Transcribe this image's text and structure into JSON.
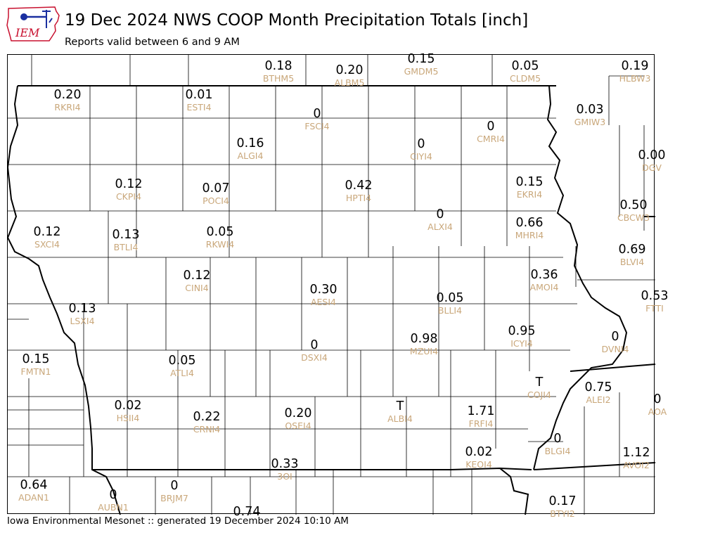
{
  "header": {
    "logo_text": "IEM",
    "title": "19 Dec 2024 NWS COOP Month Precipitation Totals [inch]",
    "subtitle": "Reports valid between 6 and 9 AM"
  },
  "footer": {
    "text": "Iowa Environmental Mesonet :: generated 19 December 2024 10:10 AM"
  },
  "colors": {
    "value_text": "#000000",
    "station_id_text": "#c9a77a",
    "logo_red": "#c8102e",
    "logo_blue": "#1a2fa0"
  },
  "stations": [
    {
      "id": "BTHM5",
      "value": "0.18"
    },
    {
      "id": "ALBM5",
      "value": "0.20"
    },
    {
      "id": "GMDM5",
      "value": "0.15"
    },
    {
      "id": "CLDM5",
      "value": "0.05"
    },
    {
      "id": "HLBW3",
      "value": "0.19"
    },
    {
      "id": "RKRI4",
      "value": "0.20"
    },
    {
      "id": "ESTI4",
      "value": "0.01"
    },
    {
      "id": "FSCI4",
      "value": "0"
    },
    {
      "id": "CMRI4",
      "value": "0"
    },
    {
      "id": "GMIW3",
      "value": "0.03"
    },
    {
      "id": "ALGI4",
      "value": "0.16"
    },
    {
      "id": "CIYI4",
      "value": "0"
    },
    {
      "id": "DGV",
      "value": "0.00"
    },
    {
      "id": "CKPI4",
      "value": "0.12"
    },
    {
      "id": "POCI4",
      "value": "0.07"
    },
    {
      "id": "HPTI4",
      "value": "0.42"
    },
    {
      "id": "EKRI4",
      "value": "0.15"
    },
    {
      "id": "CBCW3",
      "value": "0.50"
    },
    {
      "id": "ALXI4",
      "value": "0"
    },
    {
      "id": "MHRI4",
      "value": "0.66"
    },
    {
      "id": "SXCI4",
      "value": "0.12"
    },
    {
      "id": "BTLI4",
      "value": "0.13"
    },
    {
      "id": "RKWI4",
      "value": "0.05"
    },
    {
      "id": "BLVI4",
      "value": "0.69"
    },
    {
      "id": "CINI4",
      "value": "0.12"
    },
    {
      "id": "AMOI4",
      "value": "0.36"
    },
    {
      "id": "AESI4",
      "value": "0.30"
    },
    {
      "id": "BLLI4",
      "value": "0.05"
    },
    {
      "id": "FTTI",
      "value": "0.53"
    },
    {
      "id": "LSXI4",
      "value": "0.13"
    },
    {
      "id": "ICYI4",
      "value": "0.95"
    },
    {
      "id": "DVNI4",
      "value": "0"
    },
    {
      "id": "MZUI4",
      "value": "0.98"
    },
    {
      "id": "DSXI4",
      "value": "0"
    },
    {
      "id": "FMTN1",
      "value": "0.15"
    },
    {
      "id": "ATLI4",
      "value": "0.05"
    },
    {
      "id": "COJI4",
      "value": "T"
    },
    {
      "id": "ALEI2",
      "value": "0.75"
    },
    {
      "id": "AOA",
      "value": "0"
    },
    {
      "id": "HSII4",
      "value": "0.02"
    },
    {
      "id": "CRNI4",
      "value": "0.22"
    },
    {
      "id": "OSEI4",
      "value": "0.20"
    },
    {
      "id": "ALBI4",
      "value": "T"
    },
    {
      "id": "FRFI4",
      "value": "1.71"
    },
    {
      "id": "BLGI4",
      "value": "0"
    },
    {
      "id": "KEOI4",
      "value": "0.02"
    },
    {
      "id": "AVOI2",
      "value": "1.12"
    },
    {
      "id": "3OI",
      "value": "0.33"
    },
    {
      "id": "ADAN1",
      "value": "0.64"
    },
    {
      "id": "AUBN1",
      "value": "0"
    },
    {
      "id": "BRJM7",
      "value": "0"
    },
    {
      "id": "BTYI2",
      "value": "0.17"
    },
    {
      "id": "",
      "value": "0.74"
    }
  ]
}
